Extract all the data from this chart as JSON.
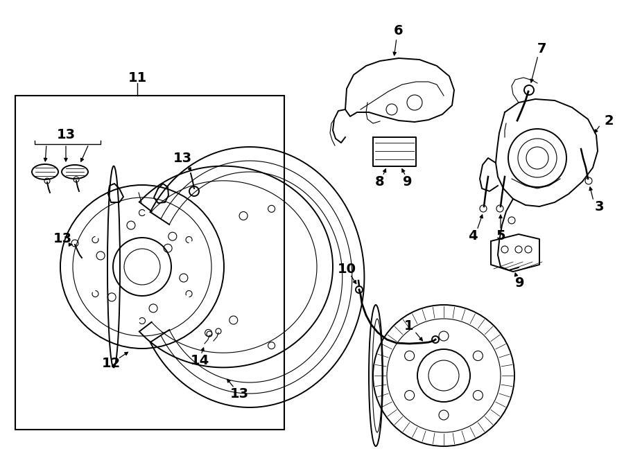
{
  "bg": "#ffffff",
  "lc": "#000000",
  "figsize": [
    9.0,
    6.61
  ],
  "dpi": 100,
  "fs": 14
}
